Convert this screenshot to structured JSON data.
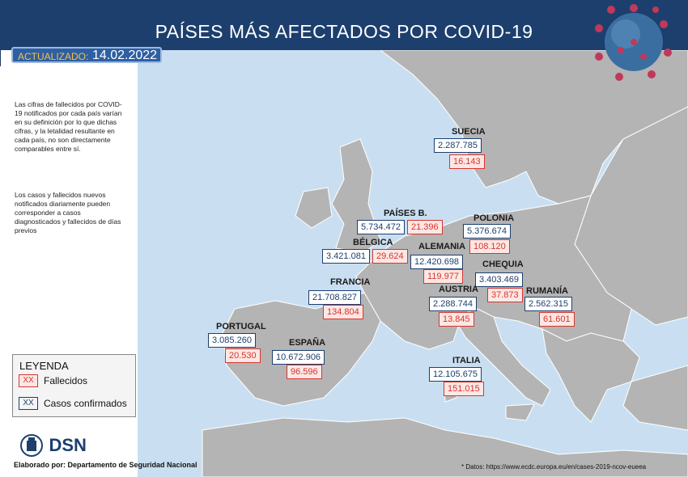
{
  "header": {
    "title": "PAÍSES MÁS AFECTADOS POR COVID-19"
  },
  "updated": {
    "label": "ACTUALIZADO:",
    "date": "14.02.2022"
  },
  "notes": [
    "Las cifras de fallecidos por COVID-19 notificados por cada país varían en su definición por lo que dichas cifras, y la letalidad resultante en cada país, no son directamente comparables entre sí.",
    "Los casos y fallecidos nuevos notificados diariamente pueden corresponder a casos diagnosticados y fallecidos de días previos"
  ],
  "countries": [
    {
      "name": "SUECIA",
      "cases": "2.287.785",
      "deaths": "16.143"
    },
    {
      "name": "PAÍSES B.",
      "cases": "5.734.472",
      "deaths": "21.396"
    },
    {
      "name": "POLONIA",
      "cases": "5.376.674",
      "deaths": "108.120"
    },
    {
      "name": "BÉLGICA",
      "cases": "3.421.081",
      "deaths": "29.624"
    },
    {
      "name": "ALEMANIA",
      "cases": "12.420.698",
      "deaths": "119.977"
    },
    {
      "name": "CHEQUIA",
      "cases": "3.403.469",
      "deaths": "37.873"
    },
    {
      "name": "FRANCIA",
      "cases": "21.708.827",
      "deaths": "134.804"
    },
    {
      "name": "AUSTRIA",
      "cases": "2.288.744",
      "deaths": "13.845"
    },
    {
      "name": "RUMANÍA",
      "cases": "2.562.315",
      "deaths": "61.601"
    },
    {
      "name": "PORTUGAL",
      "cases": "3.085.260",
      "deaths": "20.530"
    },
    {
      "name": "ESPAÑA",
      "cases": "10.672.906",
      "deaths": "96.596"
    },
    {
      "name": "ITALIA",
      "cases": "12.105.675",
      "deaths": "151.015"
    }
  ],
  "legend": {
    "title": "LEYENDA",
    "swatch": "XX",
    "deaths_label": "Fallecidos",
    "cases_label": "Casos confirmados"
  },
  "logo": {
    "text": "DSN"
  },
  "credit": "Elaborado por: Departamento de Seguridad Nacional",
  "source": "* Datos: https://www.ecdc.europa.eu/en/cases-2019-ncov-eueea",
  "colors": {
    "header": "#1d3f6e",
    "sea": "#c9dff1",
    "land": "#b4b4b4",
    "deaths": "#d6362e",
    "cases": "#1d3f6e"
  }
}
